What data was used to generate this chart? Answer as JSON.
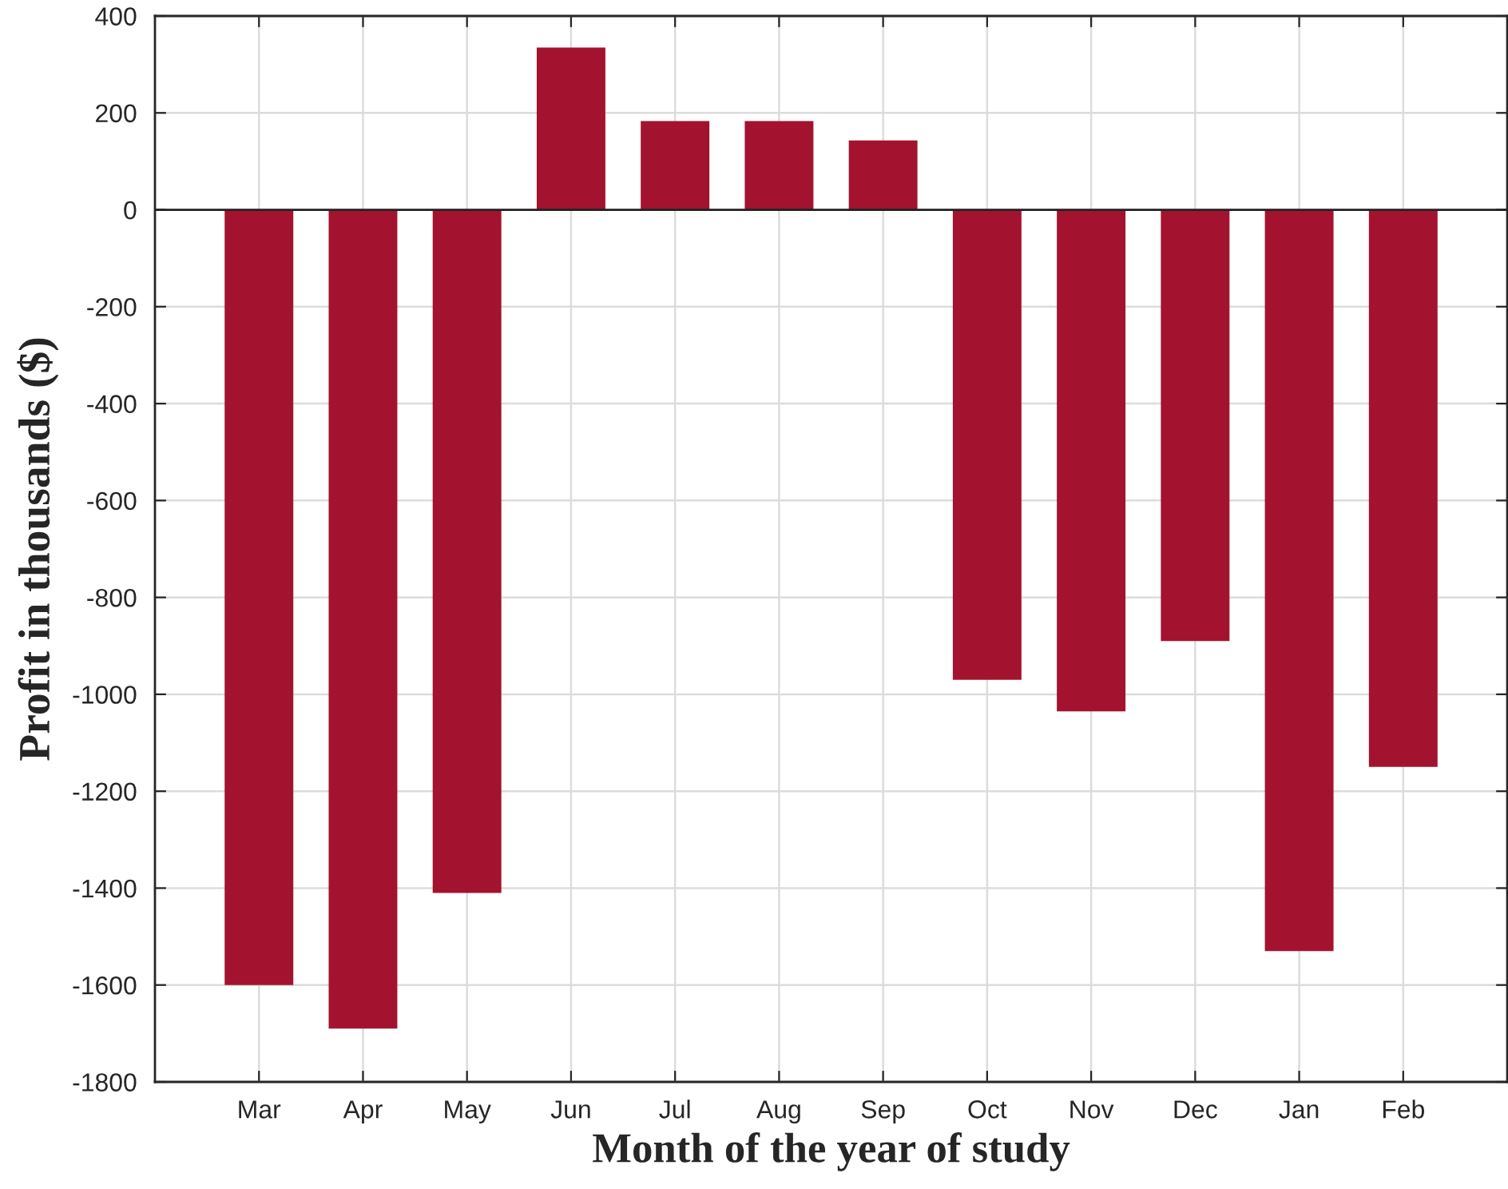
{
  "chart_data": {
    "type": "bar",
    "xlabel": "Month of the year of study",
    "ylabel": "Profit in thousands ($)",
    "categories": [
      "Mar",
      "Apr",
      "May",
      "Jun",
      "Jul",
      "Aug",
      "Sep",
      "Oct",
      "Nov",
      "Dec",
      "Jan",
      "Feb"
    ],
    "values": [
      -1600,
      -1690,
      -1410,
      335,
      183,
      183,
      143,
      -970,
      -1035,
      -890,
      -1530,
      -1150
    ],
    "color": "#a31330",
    "ylim": [
      -1800,
      400
    ],
    "yticks": [
      -1800,
      -1600,
      -1400,
      -1200,
      -1000,
      -800,
      -600,
      -400,
      -200,
      0,
      200,
      400
    ],
    "grid": true,
    "legend": false
  }
}
